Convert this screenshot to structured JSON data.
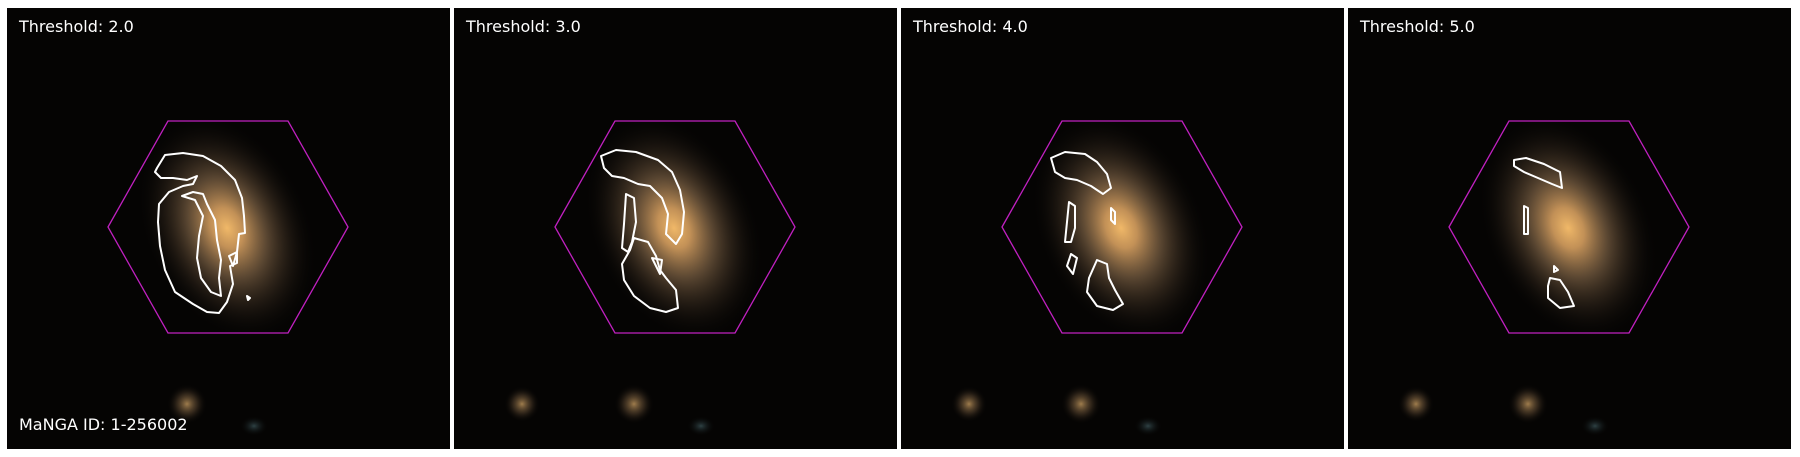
{
  "manga_id_label": "MaNGA ID: 1-256002",
  "panels": [
    {
      "label": "Threshold: 2.0"
    },
    {
      "label": "Threshold: 3.0"
    },
    {
      "label": "Threshold: 4.0"
    },
    {
      "label": "Threshold: 5.0"
    }
  ],
  "colors": {
    "hexagon": "#c020c0",
    "contour": "#ffffff",
    "background": "#050403",
    "galaxy_core": "#e0a050",
    "text": "#ffffff"
  }
}
